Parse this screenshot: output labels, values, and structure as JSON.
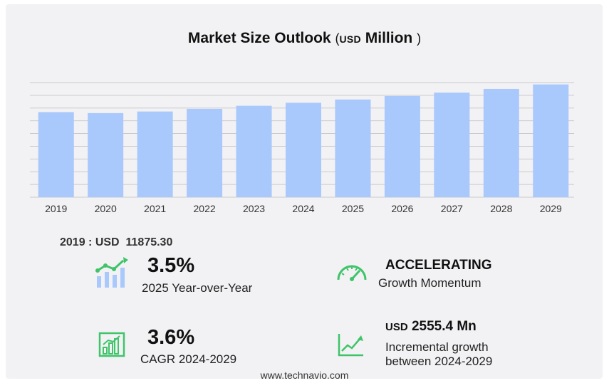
{
  "title": {
    "main": "Market Size Outlook",
    "open_paren": "(",
    "unit": "USD",
    "unit_word": "Million",
    "close_paren": ")"
  },
  "colors": {
    "bar": "#a9c8fb",
    "grid": "#c9c9cf",
    "icon_green": "#3fc46a",
    "icon_blue": "#a9c8fb"
  },
  "chart_data": {
    "type": "bar",
    "categories": [
      "2019",
      "2020",
      "2021",
      "2022",
      "2023",
      "2024",
      "2025",
      "2026",
      "2027",
      "2028",
      "2029"
    ],
    "values": [
      11875.3,
      11740,
      11960,
      12330,
      12760,
      13180,
      13640,
      14110,
      14600,
      15110,
      15740
    ],
    "ylim": [
      0,
      16000
    ],
    "grid": true
  },
  "base_year": {
    "year": "2019",
    "sep": ":",
    "unit": "USD",
    "value": "11875.30"
  },
  "stats": {
    "yoy": {
      "value": "3.5%",
      "label": "2025 Year-over-Year",
      "icon": "growth-chart-icon"
    },
    "momentum": {
      "value": "ACCELERATING",
      "label": "Growth Momentum",
      "icon": "speedometer-icon"
    },
    "cagr": {
      "value": "3.6%",
      "label": "CAGR 2024-2029",
      "icon": "bar-chart-icon"
    },
    "incremental": {
      "unit": "USD",
      "value": "2555.4 Mn",
      "label1": "Incremental growth",
      "label2": "between 2024-2029",
      "icon": "trend-line-icon"
    }
  },
  "footer": "www.technavio.com"
}
